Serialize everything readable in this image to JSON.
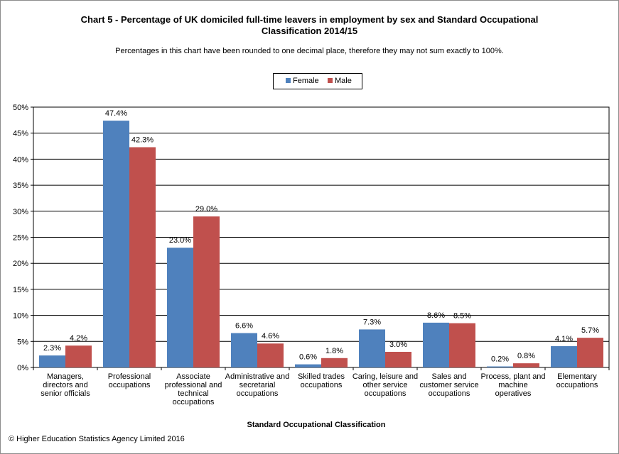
{
  "header": {
    "title_line1": "Chart 5 - Percentage of UK domiciled full-time leavers in employment by sex and Standard Occupational",
    "title_line2": "Classification  2014/15",
    "subtitle": "Percentages in this chart have been rounded to one decimal place, therefore they may not sum exactly to 100%."
  },
  "legend": {
    "female": "Female",
    "male": "Male"
  },
  "footer": {
    "copyright": "© Higher Education Statistics Agency Limited 2016"
  },
  "colors": {
    "female": "#4f81bd",
    "male": "#c0504d",
    "grid": "#000000"
  },
  "chart_data": {
    "type": "bar",
    "title": "Chart 5 - Percentage of UK domiciled full-time leavers in employment by sex and Standard Occupational Classification  2014/15",
    "xlabel": "Standard Occupational Classification",
    "ylabel": "",
    "ylim": [
      0,
      50
    ],
    "yticks": [
      "0%",
      "5%",
      "10%",
      "15%",
      "20%",
      "25%",
      "30%",
      "35%",
      "40%",
      "45%",
      "50%"
    ],
    "grid": true,
    "legend_position": "top-center",
    "categories": [
      [
        "Managers,",
        "directors and",
        "senior officials"
      ],
      [
        "Professional",
        "occupations"
      ],
      [
        "Associate",
        "professional and",
        "technical",
        "occupations"
      ],
      [
        "Administrative and",
        "secretarial",
        "occupations"
      ],
      [
        "Skilled trades",
        "occupations"
      ],
      [
        "Caring, leisure and",
        "other service",
        "occupations"
      ],
      [
        "Sales and",
        "customer service",
        "occupations"
      ],
      [
        "Process, plant and",
        "machine",
        "operatives"
      ],
      [
        "Elementary",
        "occupations"
      ]
    ],
    "series": [
      {
        "name": "Female",
        "values": [
          2.3,
          47.4,
          23.0,
          6.6,
          0.6,
          7.3,
          8.6,
          0.2,
          4.1
        ],
        "labels": [
          "2.3%",
          "47.4%",
          "23.0%",
          "6.6%",
          "0.6%",
          "7.3%",
          "8.6%",
          "0.2%",
          "4.1%"
        ]
      },
      {
        "name": "Male",
        "values": [
          4.2,
          42.3,
          29.0,
          4.6,
          1.8,
          3.0,
          8.5,
          0.8,
          5.7
        ],
        "labels": [
          "4.2%",
          "42.3%",
          "29.0%",
          "4.6%",
          "1.8%",
          "3.0%",
          "8.5%",
          "0.8%",
          "5.7%"
        ]
      }
    ]
  }
}
